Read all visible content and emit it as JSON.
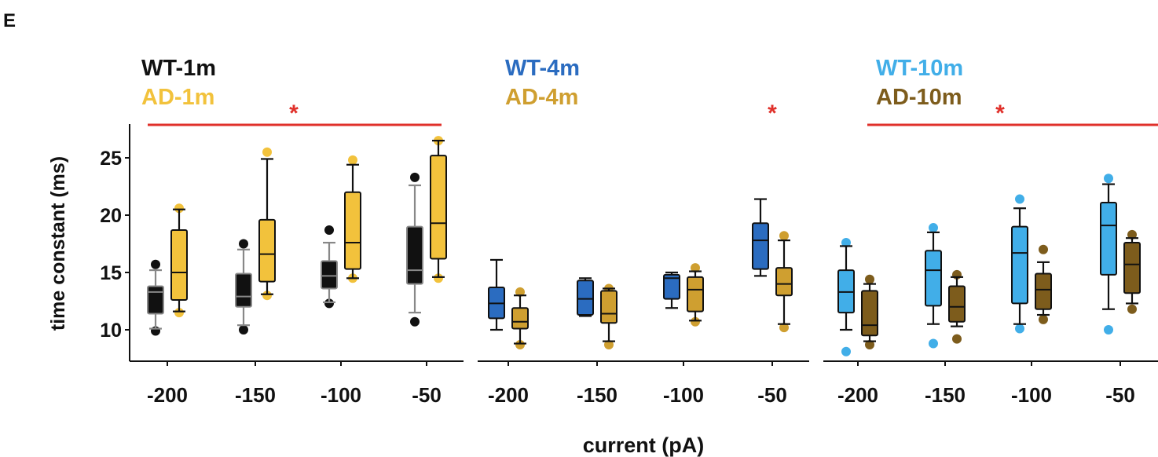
{
  "chart_data": {
    "type": "box",
    "panel_label": "E",
    "ylabel": "time constant (ms)",
    "xlabel": "current (pA)",
    "ylim": [
      7.5,
      27.5
    ],
    "yticks": [
      10,
      15,
      20,
      25
    ],
    "categories": [
      "-200",
      "-150",
      "-100",
      "-50"
    ],
    "significance_marker": "*",
    "colors": {
      "WT-1m": "#111111",
      "AD-1m": "#f2c23c",
      "WT-4m": "#2b6cc0",
      "AD-4m": "#cf9f30",
      "WT-10m": "#41aee8",
      "AD-10m": "#7d5c1c",
      "significance": "#e0302a",
      "wt1m_whisker": "#888888"
    },
    "panels": [
      {
        "legend": [
          "WT-1m",
          "AD-1m"
        ],
        "significance": {
          "span": "full",
          "star_position": "center"
        },
        "series": [
          {
            "name": "WT-1m",
            "boxes": [
              {
                "x": "-200",
                "min": 10.1,
                "q1": 11.4,
                "median": 13.3,
                "q3": 13.8,
                "max": 15.2,
                "outliers": [
                  9.9,
                  15.7
                ]
              },
              {
                "x": "-150",
                "min": 10.4,
                "q1": 12.0,
                "median": 12.9,
                "q3": 14.9,
                "max": 17.0,
                "outliers": [
                  10.0,
                  17.5
                ]
              },
              {
                "x": "-100",
                "min": 12.4,
                "q1": 13.6,
                "median": 14.7,
                "q3": 16.0,
                "max": 17.6,
                "outliers": [
                  12.3,
                  18.7
                ]
              },
              {
                "x": "-50",
                "min": 11.5,
                "q1": 14.0,
                "median": 15.2,
                "q3": 19.0,
                "max": 22.6,
                "outliers": [
                  10.7,
                  23.3
                ]
              }
            ]
          },
          {
            "name": "AD-1m",
            "boxes": [
              {
                "x": "-200",
                "min": 11.6,
                "q1": 12.6,
                "median": 15.0,
                "q3": 18.7,
                "max": 20.5,
                "outliers": [
                  11.5,
                  20.6
                ]
              },
              {
                "x": "-150",
                "min": 13.1,
                "q1": 14.2,
                "median": 16.6,
                "q3": 19.6,
                "max": 24.9,
                "outliers": [
                  13.0,
                  25.5
                ]
              },
              {
                "x": "-100",
                "min": 14.5,
                "q1": 15.3,
                "median": 17.6,
                "q3": 22.0,
                "max": 24.4,
                "outliers": [
                  14.5,
                  24.8
                ]
              },
              {
                "x": "-50",
                "min": 14.6,
                "q1": 16.2,
                "median": 19.3,
                "q3": 25.2,
                "max": 26.5,
                "outliers": [
                  14.5,
                  26.5
                ]
              }
            ]
          }
        ]
      },
      {
        "legend": [
          "WT-4m",
          "AD-4m"
        ],
        "significance": {
          "span": "none",
          "star_category": "-50"
        },
        "series": [
          {
            "name": "WT-4m",
            "boxes": [
              {
                "x": "-200",
                "min": 10.0,
                "q1": 11.0,
                "median": 12.3,
                "q3": 13.7,
                "max": 16.1,
                "outliers": []
              },
              {
                "x": "-150",
                "min": 11.2,
                "q1": 11.3,
                "median": 12.7,
                "q3": 14.3,
                "max": 14.5,
                "outliers": []
              },
              {
                "x": "-100",
                "min": 11.9,
                "q1": 12.7,
                "median": 14.5,
                "q3": 14.8,
                "max": 15.0,
                "outliers": []
              },
              {
                "x": "-50",
                "min": 14.7,
                "q1": 15.3,
                "median": 17.8,
                "q3": 19.3,
                "max": 21.4,
                "outliers": []
              }
            ]
          },
          {
            "name": "AD-4m",
            "boxes": [
              {
                "x": "-200",
                "min": 8.8,
                "q1": 10.1,
                "median": 10.7,
                "q3": 11.9,
                "max": 13.0,
                "outliers": [
                  8.7,
                  13.3
                ]
              },
              {
                "x": "-150",
                "min": 9.0,
                "q1": 10.6,
                "median": 11.4,
                "q3": 13.4,
                "max": 13.6,
                "outliers": [
                  8.7,
                  13.6
                ]
              },
              {
                "x": "-100",
                "min": 10.8,
                "q1": 11.6,
                "median": 13.5,
                "q3": 14.6,
                "max": 15.1,
                "outliers": [
                  10.7,
                  15.4
                ]
              },
              {
                "x": "-50",
                "min": 10.5,
                "q1": 13.0,
                "median": 14.0,
                "q3": 15.4,
                "max": 17.8,
                "outliers": [
                  10.2,
                  18.2
                ]
              }
            ]
          }
        ]
      },
      {
        "legend": [
          "WT-10m",
          "AD-10m"
        ],
        "significance": {
          "span": "right",
          "star_position": "center"
        },
        "series": [
          {
            "name": "WT-10m",
            "boxes": [
              {
                "x": "-200",
                "min": 10.0,
                "q1": 11.5,
                "median": 13.3,
                "q3": 15.2,
                "max": 17.3,
                "outliers": [
                  8.1,
                  17.6
                ]
              },
              {
                "x": "-150",
                "min": 10.5,
                "q1": 12.1,
                "median": 15.2,
                "q3": 16.9,
                "max": 18.5,
                "outliers": [
                  8.8,
                  18.9
                ]
              },
              {
                "x": "-100",
                "min": 10.5,
                "q1": 12.3,
                "median": 16.7,
                "q3": 19.0,
                "max": 20.6,
                "outliers": [
                  10.1,
                  21.4
                ]
              },
              {
                "x": "-50",
                "min": 11.8,
                "q1": 14.8,
                "median": 19.1,
                "q3": 21.1,
                "max": 22.7,
                "outliers": [
                  10.0,
                  23.2
                ]
              }
            ]
          },
          {
            "name": "AD-10m",
            "boxes": [
              {
                "x": "-200",
                "min": 9.0,
                "q1": 9.5,
                "median": 10.4,
                "q3": 13.4,
                "max": 14.0,
                "outliers": [
                  8.7,
                  14.4
                ]
              },
              {
                "x": "-150",
                "min": 10.3,
                "q1": 10.7,
                "median": 12.0,
                "q3": 13.8,
                "max": 14.6,
                "outliers": [
                  9.2,
                  14.8
                ]
              },
              {
                "x": "-100",
                "min": 11.3,
                "q1": 11.8,
                "median": 13.5,
                "q3": 14.9,
                "max": 15.9,
                "outliers": [
                  10.9,
                  17.0
                ]
              },
              {
                "x": "-50",
                "min": 12.3,
                "q1": 13.2,
                "median": 15.7,
                "q3": 17.6,
                "max": 18.0,
                "outliers": [
                  11.8,
                  18.3
                ]
              }
            ]
          }
        ]
      }
    ]
  }
}
